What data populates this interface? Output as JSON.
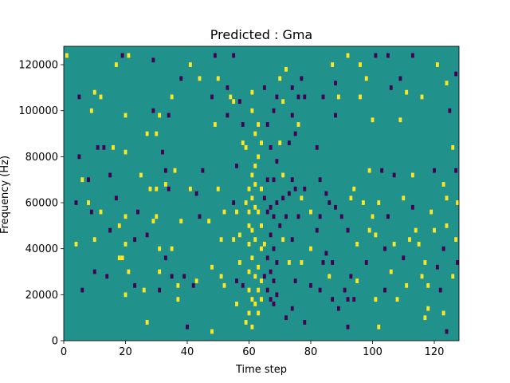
{
  "chart_data": {
    "type": "heatmap",
    "title": "Predicted : Gma",
    "xlabel": "Time step",
    "ylabel": "Frequency (Hz)",
    "xlim": [
      0,
      128
    ],
    "ylim": [
      0,
      128000
    ],
    "x_ticks": [
      0,
      20,
      40,
      60,
      80,
      100,
      120
    ],
    "y_ticks": [
      0,
      20000,
      40000,
      60000,
      80000,
      100000,
      120000
    ],
    "colormap": [
      "#440154",
      "#21918c",
      "#fde725"
    ],
    "background_value": 0,
    "value_meaning": "-1 = dark purple, 0 = teal background, 1 = yellow",
    "bin_width_hz": 2000,
    "cells": [
      [
        1,
        124000,
        1
      ],
      [
        4,
        42000,
        1
      ],
      [
        4,
        60000,
        -1
      ],
      [
        5,
        80000,
        -1
      ],
      [
        5,
        106000,
        -1
      ],
      [
        6,
        70000,
        1
      ],
      [
        6,
        22000,
        -1
      ],
      [
        8,
        70000,
        -1
      ],
      [
        8,
        60000,
        1
      ],
      [
        9,
        56000,
        -1
      ],
      [
        9,
        100000,
        1
      ],
      [
        10,
        44000,
        1
      ],
      [
        10,
        108000,
        1
      ],
      [
        10,
        30000,
        -1
      ],
      [
        11,
        84000,
        -1
      ],
      [
        12,
        56000,
        1
      ],
      [
        12,
        106000,
        1
      ],
      [
        13,
        84000,
        -1
      ],
      [
        14,
        28000,
        -1
      ],
      [
        15,
        72000,
        -1
      ],
      [
        15,
        48000,
        -1
      ],
      [
        16,
        84000,
        1
      ],
      [
        17,
        120000,
        1
      ],
      [
        17,
        62000,
        -1
      ],
      [
        18,
        50000,
        1
      ],
      [
        18,
        36000,
        1
      ],
      [
        19,
        124000,
        -1
      ],
      [
        19,
        36000,
        1
      ],
      [
        20,
        54000,
        1
      ],
      [
        20,
        42000,
        1
      ],
      [
        20,
        98000,
        1
      ],
      [
        20,
        20000,
        1
      ],
      [
        20,
        82000,
        1
      ],
      [
        21,
        124000,
        1
      ],
      [
        21,
        30000,
        1
      ],
      [
        23,
        44000,
        -1
      ],
      [
        23,
        24000,
        -1
      ],
      [
        24,
        56000,
        -1
      ],
      [
        25,
        72000,
        1
      ],
      [
        26,
        22000,
        1
      ],
      [
        27,
        46000,
        -1
      ],
      [
        27,
        90000,
        1
      ],
      [
        27,
        8000,
        1
      ],
      [
        28,
        66000,
        1
      ],
      [
        29,
        100000,
        -1
      ],
      [
        29,
        122000,
        -1
      ],
      [
        29,
        52000,
        1
      ],
      [
        30,
        54000,
        1
      ],
      [
        30,
        66000,
        1
      ],
      [
        30,
        90000,
        1
      ],
      [
        31,
        98000,
        1
      ],
      [
        31,
        40000,
        1
      ],
      [
        31,
        30000,
        1
      ],
      [
        31,
        22000,
        -1
      ],
      [
        32,
        82000,
        -1
      ],
      [
        33,
        74000,
        -1
      ],
      [
        33,
        68000,
        1
      ],
      [
        33,
        36000,
        -1
      ],
      [
        34,
        98000,
        -1
      ],
      [
        34,
        66000,
        -1
      ],
      [
        35,
        106000,
        1
      ],
      [
        35,
        40000,
        1
      ],
      [
        35,
        28000,
        -1
      ],
      [
        36,
        74000,
        1
      ],
      [
        37,
        24000,
        1
      ],
      [
        37,
        18000,
        1
      ],
      [
        38,
        52000,
        1
      ],
      [
        38,
        114000,
        -1
      ],
      [
        39,
        28000,
        -1
      ],
      [
        40,
        6000,
        -1
      ],
      [
        41,
        66000,
        1
      ],
      [
        41,
        120000,
        1
      ],
      [
        42,
        24000,
        -1
      ],
      [
        43,
        64000,
        -1
      ],
      [
        43,
        26000,
        1
      ],
      [
        44,
        54000,
        -1
      ],
      [
        44,
        114000,
        1
      ],
      [
        45,
        74000,
        -1
      ],
      [
        47,
        52000,
        1
      ],
      [
        48,
        32000,
        1
      ],
      [
        48,
        106000,
        -1
      ],
      [
        48,
        4000,
        1
      ],
      [
        49,
        124000,
        -1
      ],
      [
        49,
        94000,
        1
      ],
      [
        50,
        114000,
        1
      ],
      [
        50,
        66000,
        1
      ],
      [
        51,
        28000,
        1
      ],
      [
        51,
        44000,
        1
      ],
      [
        52,
        24000,
        1
      ],
      [
        52,
        56000,
        1
      ],
      [
        53,
        110000,
        -1
      ],
      [
        53,
        98000,
        -1
      ],
      [
        54,
        106000,
        1
      ],
      [
        55,
        124000,
        -1
      ],
      [
        55,
        104000,
        1
      ],
      [
        55,
        60000,
        -1
      ],
      [
        55,
        44000,
        1
      ],
      [
        56,
        76000,
        -1
      ],
      [
        56,
        26000,
        -1
      ],
      [
        56,
        16000,
        1
      ],
      [
        56,
        56000,
        1
      ],
      [
        57,
        104000,
        -1
      ],
      [
        57,
        34000,
        1
      ],
      [
        57,
        46000,
        1
      ],
      [
        58,
        94000,
        -1
      ],
      [
        58,
        86000,
        1
      ],
      [
        58,
        24000,
        -1
      ],
      [
        59,
        60000,
        1
      ],
      [
        59,
        8000,
        1
      ],
      [
        59,
        84000,
        1
      ],
      [
        60,
        66000,
        1
      ],
      [
        60,
        56000,
        1
      ],
      [
        60,
        50000,
        1
      ],
      [
        60,
        42000,
        1
      ],
      [
        60,
        30000,
        1
      ],
      [
        60,
        22000,
        1
      ],
      [
        60,
        12000,
        1
      ],
      [
        61,
        108000,
        1
      ],
      [
        61,
        100000,
        1
      ],
      [
        61,
        72000,
        1
      ],
      [
        61,
        62000,
        1
      ],
      [
        61,
        48000,
        1
      ],
      [
        61,
        36000,
        1
      ],
      [
        61,
        18000,
        1
      ],
      [
        61,
        6000,
        1
      ],
      [
        62,
        90000,
        1
      ],
      [
        62,
        76000,
        1
      ],
      [
        62,
        68000,
        1
      ],
      [
        62,
        58000,
        1
      ],
      [
        62,
        44000,
        1
      ],
      [
        62,
        28000,
        1
      ],
      [
        62,
        16000,
        1
      ],
      [
        63,
        94000,
        1
      ],
      [
        63,
        80000,
        1
      ],
      [
        63,
        56000,
        1
      ],
      [
        63,
        32000,
        1
      ],
      [
        63,
        22000,
        1
      ],
      [
        63,
        12000,
        1
      ],
      [
        64,
        86000,
        1
      ],
      [
        64,
        66000,
        1
      ],
      [
        64,
        50000,
        1
      ],
      [
        64,
        40000,
        1
      ],
      [
        64,
        26000,
        1
      ],
      [
        64,
        18000,
        1
      ],
      [
        65,
        110000,
        -1
      ],
      [
        65,
        62000,
        -1
      ],
      [
        65,
        42000,
        1
      ],
      [
        65,
        28000,
        -1
      ],
      [
        66,
        94000,
        -1
      ],
      [
        66,
        70000,
        -1
      ],
      [
        66,
        56000,
        -1
      ],
      [
        66,
        36000,
        -1
      ],
      [
        66,
        22000,
        -1
      ],
      [
        67,
        84000,
        -1
      ],
      [
        67,
        58000,
        -1
      ],
      [
        67,
        46000,
        -1
      ],
      [
        67,
        30000,
        -1
      ],
      [
        67,
        18000,
        -1
      ],
      [
        68,
        100000,
        -1
      ],
      [
        68,
        70000,
        -1
      ],
      [
        68,
        54000,
        -1
      ],
      [
        68,
        40000,
        -1
      ],
      [
        68,
        26000,
        -1
      ],
      [
        68,
        16000,
        -1
      ],
      [
        69,
        106000,
        -1
      ],
      [
        69,
        78000,
        -1
      ],
      [
        69,
        60000,
        -1
      ],
      [
        69,
        34000,
        -1
      ],
      [
        69,
        20000,
        -1
      ],
      [
        70,
        114000,
        1
      ],
      [
        70,
        86000,
        1
      ],
      [
        70,
        50000,
        -1
      ],
      [
        71,
        104000,
        1
      ],
      [
        71,
        72000,
        1
      ],
      [
        71,
        62000,
        -1
      ],
      [
        71,
        44000,
        1
      ],
      [
        72,
        118000,
        1
      ],
      [
        72,
        54000,
        -1
      ],
      [
        72,
        10000,
        -1
      ],
      [
        73,
        86000,
        -1
      ],
      [
        73,
        64000,
        -1
      ],
      [
        73,
        34000,
        1
      ],
      [
        74,
        110000,
        -1
      ],
      [
        74,
        98000,
        -1
      ],
      [
        74,
        70000,
        -1
      ],
      [
        74,
        44000,
        -1
      ],
      [
        74,
        14000,
        -1
      ],
      [
        75,
        90000,
        -1
      ],
      [
        75,
        66000,
        -1
      ],
      [
        75,
        26000,
        -1
      ],
      [
        76,
        94000,
        1
      ],
      [
        76,
        106000,
        -1
      ],
      [
        76,
        54000,
        -1
      ],
      [
        77,
        114000,
        -1
      ],
      [
        77,
        62000,
        1
      ],
      [
        77,
        34000,
        1
      ],
      [
        78,
        106000,
        -1
      ],
      [
        78,
        66000,
        -1
      ],
      [
        78,
        8000,
        -1
      ],
      [
        80,
        56000,
        1
      ],
      [
        80,
        40000,
        1
      ],
      [
        80,
        24000,
        -1
      ],
      [
        82,
        84000,
        -1
      ],
      [
        82,
        48000,
        -1
      ],
      [
        83,
        70000,
        -1
      ],
      [
        83,
        54000,
        -1
      ],
      [
        83,
        22000,
        -1
      ],
      [
        84,
        106000,
        -1
      ],
      [
        84,
        34000,
        -1
      ],
      [
        85,
        64000,
        -1
      ],
      [
        85,
        38000,
        -1
      ],
      [
        86,
        60000,
        -1
      ],
      [
        86,
        28000,
        1
      ],
      [
        87,
        120000,
        1
      ],
      [
        87,
        34000,
        -1
      ],
      [
        87,
        18000,
        -1
      ],
      [
        88,
        112000,
        -1
      ],
      [
        88,
        98000,
        -1
      ],
      [
        88,
        58000,
        -1
      ],
      [
        89,
        106000,
        1
      ],
      [
        89,
        14000,
        -1
      ],
      [
        90,
        54000,
        -1
      ],
      [
        91,
        22000,
        -1
      ],
      [
        92,
        124000,
        1
      ],
      [
        92,
        48000,
        -1
      ],
      [
        92,
        18000,
        -1
      ],
      [
        92,
        6000,
        -1
      ],
      [
        93,
        62000,
        1
      ],
      [
        93,
        28000,
        -1
      ],
      [
        94,
        66000,
        1
      ],
      [
        94,
        18000,
        -1
      ],
      [
        95,
        42000,
        1
      ],
      [
        95,
        26000,
        1
      ],
      [
        96,
        120000,
        1
      ],
      [
        96,
        106000,
        1
      ],
      [
        97,
        60000,
        1
      ],
      [
        98,
        114000,
        1
      ],
      [
        98,
        34000,
        -1
      ],
      [
        99,
        74000,
        1
      ],
      [
        99,
        48000,
        1
      ],
      [
        100,
        96000,
        1
      ],
      [
        100,
        54000,
        1
      ],
      [
        101,
        46000,
        1
      ],
      [
        101,
        124000,
        -1
      ],
      [
        101,
        18000,
        1
      ],
      [
        102,
        60000,
        1
      ],
      [
        102,
        6000,
        1
      ],
      [
        103,
        74000,
        -1
      ],
      [
        104,
        40000,
        -1
      ],
      [
        104,
        22000,
        -1
      ],
      [
        105,
        124000,
        -1
      ],
      [
        105,
        54000,
        -1
      ],
      [
        106,
        110000,
        -1
      ],
      [
        106,
        30000,
        1
      ],
      [
        107,
        42000,
        1
      ],
      [
        107,
        72000,
        -1
      ],
      [
        108,
        18000,
        1
      ],
      [
        109,
        96000,
        1
      ],
      [
        109,
        114000,
        -1
      ],
      [
        110,
        62000,
        1
      ],
      [
        110,
        36000,
        -1
      ],
      [
        111,
        108000,
        1
      ],
      [
        111,
        24000,
        1
      ],
      [
        112,
        44000,
        1
      ],
      [
        113,
        124000,
        -1
      ],
      [
        113,
        72000,
        1
      ],
      [
        113,
        58000,
        -1
      ],
      [
        114,
        48000,
        1
      ],
      [
        115,
        42000,
        1
      ],
      [
        116,
        28000,
        1
      ],
      [
        116,
        106000,
        1
      ],
      [
        117,
        34000,
        1
      ],
      [
        117,
        10000,
        1
      ],
      [
        118,
        14000,
        1
      ],
      [
        118,
        24000,
        1
      ],
      [
        119,
        56000,
        1
      ],
      [
        120,
        48000,
        1
      ],
      [
        120,
        74000,
        -1
      ],
      [
        121,
        120000,
        1
      ],
      [
        121,
        32000,
        -1
      ],
      [
        122,
        22000,
        -1
      ],
      [
        123,
        68000,
        1
      ],
      [
        123,
        40000,
        -1
      ],
      [
        123,
        12000,
        1
      ],
      [
        124,
        62000,
        1
      ],
      [
        124,
        50000,
        1
      ],
      [
        124,
        112000,
        1
      ],
      [
        124,
        4000,
        -1
      ],
      [
        125,
        100000,
        -1
      ],
      [
        126,
        84000,
        1
      ],
      [
        126,
        28000,
        1
      ],
      [
        127,
        74000,
        -1
      ],
      [
        127,
        44000,
        1
      ],
      [
        127,
        116000,
        -1
      ],
      [
        128,
        60000,
        1
      ],
      [
        128,
        34000,
        -1
      ]
    ]
  }
}
